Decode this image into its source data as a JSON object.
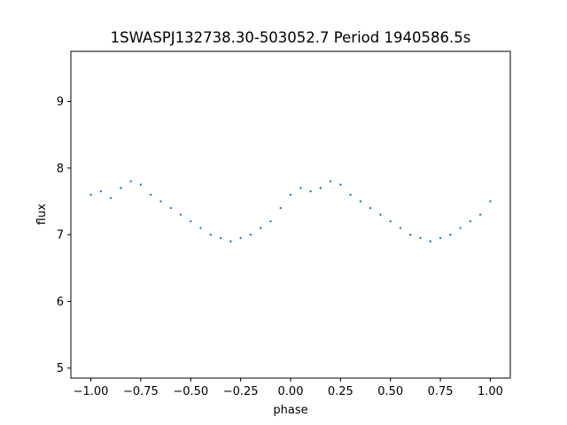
{
  "chart_data": {
    "type": "scatter",
    "title": "1SWASPJ132738.30-503052.7 Period 1940586.5s",
    "xlabel": "phase",
    "ylabel": "flux",
    "xlim": [
      -1.1,
      1.1
    ],
    "ylim": [
      4.85,
      9.75
    ],
    "x_ticks": [
      -1.0,
      -0.75,
      -0.5,
      -0.25,
      0.0,
      0.25,
      0.5,
      0.75,
      1.0
    ],
    "x_tick_labels": [
      "−1.00",
      "−0.75",
      "−0.50",
      "−0.25",
      "0.00",
      "0.25",
      "0.50",
      "0.75",
      "1.00"
    ],
    "y_ticks": [
      5,
      6,
      7,
      8,
      9
    ],
    "y_tick_labels": [
      "5",
      "6",
      "7",
      "8",
      "9"
    ],
    "grid": false,
    "legend": "none",
    "marker_color": "#1f77b4",
    "series": [
      {
        "x": [
          -1.0,
          -0.95,
          -0.9,
          -0.85,
          -0.8,
          -0.75,
          -0.7,
          -0.65,
          -0.6,
          -0.55,
          -0.5,
          -0.45,
          -0.4,
          -0.35,
          -0.3,
          -0.25,
          -0.2,
          -0.15,
          -0.1,
          -0.05,
          0.0,
          0.05,
          0.1,
          0.15,
          0.2,
          0.25,
          0.3,
          0.35,
          0.4,
          0.45,
          0.5,
          0.55,
          0.6,
          0.65,
          0.7,
          0.75,
          0.8,
          0.85,
          0.9,
          0.95,
          1.0
        ],
        "y": [
          7.6,
          7.65,
          7.55,
          7.7,
          7.8,
          7.75,
          7.6,
          7.5,
          7.4,
          7.3,
          7.2,
          7.1,
          7.0,
          6.95,
          6.9,
          6.95,
          7.0,
          7.1,
          7.2,
          7.4,
          7.6,
          7.7,
          7.65,
          7.7,
          7.8,
          7.75,
          7.6,
          7.5,
          7.4,
          7.3,
          7.2,
          7.1,
          7.0,
          6.95,
          6.9,
          6.95,
          7.0,
          7.1,
          7.2,
          7.3,
          7.5
        ]
      }
    ]
  }
}
